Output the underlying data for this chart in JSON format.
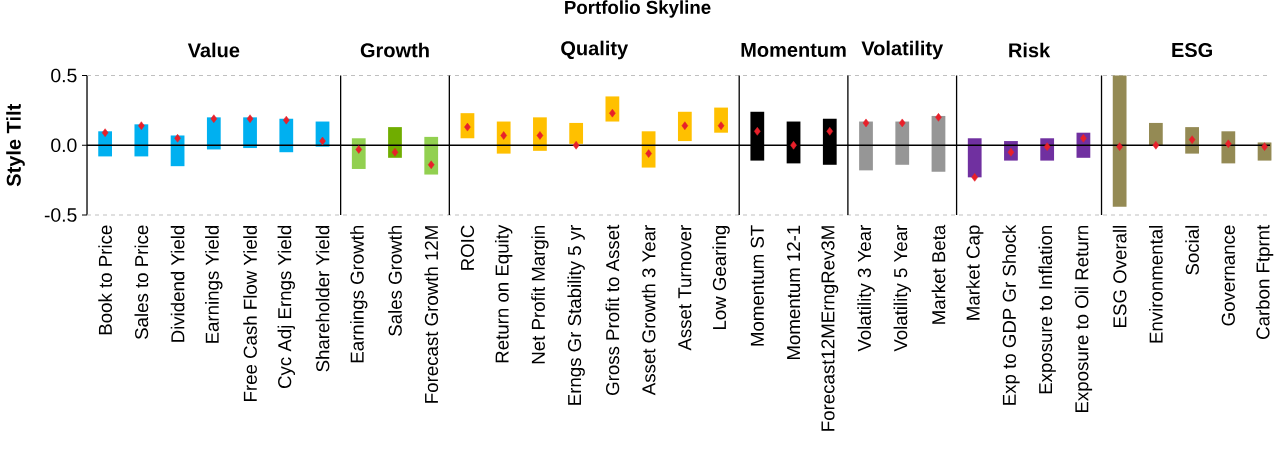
{
  "chart_data": {
    "type": "bar",
    "title": "Portfolio Skyline",
    "ylabel": "Style Tilt",
    "categories": [
      "Book to Price",
      "Sales to Price",
      "Dividend Yield",
      "Earnings Yield",
      "Free Cash Flow Yield",
      "Cyc Adj Erngs Yield",
      "Shareholder Yield",
      "Earnings Growth",
      "Sales Growth",
      "Forecast Growth 12M",
      "ROIC",
      "Return on Equity",
      "Net Profit Margin",
      "Erngs Gr Stability 5 yr",
      "Gross Profit to Asset",
      "Asset Growth 3 Year",
      "Asset Turnover",
      "Low Gearing",
      "Momentum ST",
      "Momentum 12-1",
      "Forecast12MErngRev3M",
      "Volatility 3 Year",
      "Volatility 5 Year",
      "Market Beta",
      "Market Cap",
      "Exp to GDP Gr Shock",
      "Exposure to Inflation",
      "Exposure to Oil Return",
      "ESG Overall",
      "Environmental",
      "Social",
      "Governance",
      "Carbon Ftprnt"
    ],
    "ylim": [
      -0.5,
      0.5
    ],
    "yticks": [
      {
        "value": -0.5,
        "label": "-0.5"
      },
      {
        "value": 0,
        "label": "0.0"
      },
      {
        "value": 0.5,
        "label": "0.5"
      }
    ],
    "ref_lines": [
      {
        "axis": "y",
        "value": 0,
        "color": "#000000"
      }
    ],
    "annotations": [
      "Value",
      "Growth",
      "Quality",
      "Momentum",
      "Volatility",
      "Risk",
      "ESG"
    ],
    "series": [
      {
        "base": [
          -0.08,
          -0.08,
          -0.15,
          -0.03,
          -0.02,
          -0.05,
          -0.01,
          -0.17,
          -0.09,
          -0.21,
          0.05,
          -0.06,
          -0.04,
          0.01,
          0.17,
          -0.16,
          0.03,
          0.09,
          -0.11,
          -0.13,
          -0.14,
          -0.18,
          -0.14,
          -0.19,
          -0.23,
          -0.11,
          -0.11,
          -0.09,
          -0.44,
          0.0,
          -0.06,
          -0.13,
          -0.11
        ],
        "values": [
          0.18,
          0.23,
          0.22,
          0.23,
          0.22,
          0.24,
          0.18,
          0.22,
          0.22,
          0.27,
          0.18,
          0.23,
          0.24,
          0.15,
          0.18,
          0.26,
          0.21,
          0.18,
          0.35,
          0.3,
          0.33,
          0.35,
          0.31,
          0.4,
          0.28,
          0.14,
          0.16,
          0.18,
          0.94,
          0.16,
          0.19,
          0.23,
          0.13
        ],
        "colors": [
          "#00b0f0",
          "#00b0f0",
          "#00b0f0",
          "#00b0f0",
          "#00b0f0",
          "#00b0f0",
          "#00b0f0",
          "#92d050",
          "#70ad00",
          "#92d050",
          "#ffc000",
          "#ffc000",
          "#ffc000",
          "#ffc000",
          "#ffc000",
          "#ffc000",
          "#ffc000",
          "#ffc000",
          "#000000",
          "#000000",
          "#000000",
          "#969696",
          "#969696",
          "#969696",
          "#7030a0",
          "#7030a0",
          "#7030a0",
          "#7030a0",
          "#948a54",
          "#948a54",
          "#948a54",
          "#948a54",
          "#948a54"
        ]
      },
      {
        "type": "scatter",
        "marker": "diamond",
        "color": "#e8202a",
        "x": [
          "Book to Price",
          "Sales to Price",
          "Dividend Yield",
          "Earnings Yield",
          "Free Cash Flow Yield",
          "Cyc Adj Erngs Yield",
          "Shareholder Yield",
          "Earnings Growth",
          "Sales Growth",
          "Forecast Growth 12M",
          "ROIC",
          "Return on Equity",
          "Net Profit Margin",
          "Erngs Gr Stability 5 yr",
          "Gross Profit to Asset",
          "Asset Growth 3 Year",
          "Asset Turnover",
          "Low Gearing",
          "Momentum ST",
          "Momentum 12-1",
          "Forecast12MErngRev3M",
          "Volatility 3 Year",
          "Volatility 5 Year",
          "Market Beta",
          "Market Cap",
          "Exp to GDP Gr Shock",
          "Exposure to Inflation",
          "Exposure to Oil Return",
          "ESG Overall",
          "Environmental",
          "Social",
          "Governance",
          "Carbon Ftprnt"
        ],
        "values": [
          0.09,
          0.14,
          0.05,
          0.19,
          0.19,
          0.18,
          0.03,
          -0.03,
          -0.05,
          -0.14,
          0.13,
          0.07,
          0.07,
          0.0,
          0.23,
          -0.06,
          0.14,
          0.14,
          0.1,
          0.0,
          0.1,
          0.16,
          0.16,
          0.2,
          -0.23,
          -0.05,
          -0.01,
          0.05,
          -0.01,
          0.0,
          0.04,
          0.01,
          -0.01
        ]
      }
    ]
  }
}
